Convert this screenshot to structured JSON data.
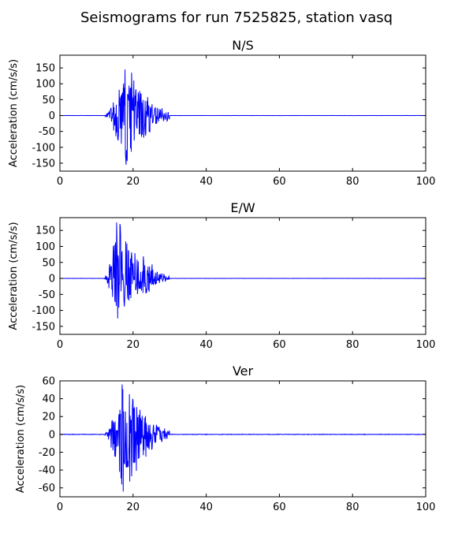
{
  "figure": {
    "title": "Seismograms for run 7525825, station vasq"
  },
  "chart_data": [
    {
      "type": "line",
      "title": "N/S",
      "xlabel": "",
      "ylabel": "Acceleration (cm/s/s)",
      "xlim": [
        0,
        100
      ],
      "ylim": [
        -175,
        190
      ],
      "xticks": [
        0,
        20,
        40,
        60,
        80,
        100
      ],
      "yticks": [
        -150,
        -100,
        -50,
        0,
        50,
        100,
        150
      ],
      "line_color": "#0000ff",
      "signal": {
        "onset": 12,
        "peak_time": 17.8,
        "end": 30,
        "amplitude": 145,
        "neg_amplitude": 155,
        "seed": 3
      }
    },
    {
      "type": "line",
      "title": "E/W",
      "xlabel": "",
      "ylabel": "Acceleration (cm/s/s)",
      "xlim": [
        0,
        100
      ],
      "ylim": [
        -175,
        190
      ],
      "xticks": [
        0,
        20,
        40,
        60,
        80,
        100
      ],
      "yticks": [
        -150,
        -100,
        -50,
        0,
        50,
        100,
        150
      ],
      "line_color": "#0000ff",
      "signal": {
        "onset": 12,
        "peak_time": 15.5,
        "end": 30,
        "amplitude": 175,
        "neg_amplitude": 125,
        "seed": 11
      }
    },
    {
      "type": "line",
      "title": "Ver",
      "xlabel": "",
      "ylabel": "Acceleration (cm/s/s)",
      "xlim": [
        0,
        100
      ],
      "ylim": [
        -70,
        60
      ],
      "xticks": [
        0,
        20,
        40,
        60,
        80,
        100
      ],
      "yticks": [
        -60,
        -40,
        -20,
        0,
        20,
        40,
        60
      ],
      "line_color": "#0000ff",
      "signal": {
        "onset": 12,
        "peak_time": 17.0,
        "end": 30,
        "amplitude": 56,
        "neg_amplitude": 64,
        "seed": 7
      }
    }
  ]
}
